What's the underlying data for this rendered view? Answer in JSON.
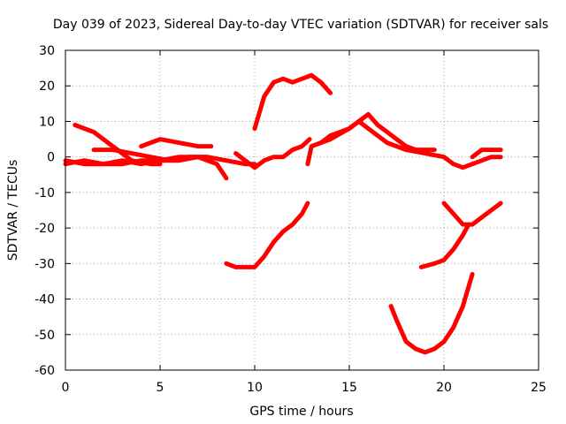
{
  "chart_data": {
    "type": "line",
    "title": "Day 039 of 2023, Sidereal Day-to-day VTEC variation (SDTVAR) for receiver sals",
    "xlabel": "GPS time / hours",
    "ylabel": "SDTVAR / TECUs",
    "xlim": [
      0,
      25
    ],
    "ylim": [
      -60,
      30
    ],
    "xticks": [
      "0",
      "5",
      "10",
      "15",
      "20",
      "25"
    ],
    "yticks": [
      "30",
      "20",
      "10",
      "0",
      "-10",
      "-20",
      "-30",
      "-40",
      "-50",
      "-60"
    ],
    "grid": true,
    "legend": "none",
    "line_color": "#ff0000",
    "series": [
      {
        "x": [
          0.0,
          1.0,
          2.0,
          3.0,
          4.0,
          5.0,
          6.0,
          7.0,
          7.5,
          8.5,
          9.5,
          10.0
        ],
        "y": [
          -2,
          -1,
          -2,
          -1,
          -2,
          -1,
          -1,
          0,
          0,
          -1,
          -2,
          -2
        ]
      },
      {
        "x": [
          0.0,
          1.0,
          2.0,
          3.0,
          4.0,
          5.0,
          6.0,
          7.0,
          8.0,
          8.5
        ],
        "y": [
          -1,
          -2,
          -2,
          -2,
          -1,
          -1,
          0,
          0,
          -2,
          -6
        ]
      },
      {
        "x": [
          0.5,
          1.5,
          2.5,
          3.5,
          4.5,
          5.0
        ],
        "y": [
          9,
          7,
          3,
          -1,
          -2,
          -2
        ]
      },
      {
        "x": [
          1.5,
          2.5,
          3.5,
          4.5,
          5.5,
          6.5,
          7.5
        ],
        "y": [
          2,
          2,
          1,
          0,
          -1,
          0,
          0
        ]
      },
      {
        "x": [
          4.0,
          5.0,
          6.0,
          7.0,
          7.7
        ],
        "y": [
          3,
          5,
          4,
          3,
          3
        ]
      },
      {
        "x": [
          9.0,
          9.5,
          10.0,
          10.5,
          11.0,
          11.5,
          12.0,
          12.5,
          12.9
        ],
        "y": [
          1,
          -1,
          -3,
          -1,
          0,
          0,
          2,
          3,
          5
        ]
      },
      {
        "x": [
          10.0,
          10.5,
          11.0,
          11.5,
          12.0,
          12.5,
          13.0,
          13.5,
          14.0
        ],
        "y": [
          8,
          17,
          21,
          22,
          21,
          22,
          23,
          21,
          18
        ]
      },
      {
        "x": [
          8.5,
          9.0,
          9.5,
          10.0,
          10.5,
          11.0,
          11.5,
          12.0,
          12.5,
          12.8
        ],
        "y": [
          -30,
          -31,
          -31,
          -31,
          -28,
          -24,
          -21,
          -19,
          -16,
          -13
        ]
      },
      {
        "x": [
          12.8,
          13.0,
          14.0,
          15.0,
          15.5,
          16.0,
          16.5,
          17.0,
          17.5,
          18.0,
          18.5,
          19.0,
          19.5
        ],
        "y": [
          -2,
          3,
          5,
          8,
          10,
          12,
          9,
          7,
          5,
          3,
          2,
          2,
          2
        ]
      },
      {
        "x": [
          13.5,
          14.0,
          15.0,
          15.5,
          16.0,
          17.0,
          18.0,
          19.0,
          20.0,
          20.5,
          21.0,
          21.5,
          22.0,
          22.5,
          23.0
        ],
        "y": [
          4,
          6,
          8,
          10,
          8,
          4,
          2,
          1,
          0,
          -2,
          -3,
          -2,
          -1,
          0,
          0
        ]
      },
      {
        "x": [
          21.5,
          22.0,
          22.5,
          23.0
        ],
        "y": [
          0,
          2,
          2,
          2
        ]
      },
      {
        "x": [
          20.0,
          20.5,
          21.0,
          21.5,
          22.0,
          22.5,
          23.0
        ],
        "y": [
          -13,
          -16,
          -19,
          -19,
          -17,
          -15,
          -13
        ]
      },
      {
        "x": [
          18.8,
          19.5,
          20.0,
          20.5,
          21.0,
          21.3
        ],
        "y": [
          -31,
          -30,
          -29,
          -26,
          -22,
          -19
        ]
      },
      {
        "x": [
          17.2,
          17.5,
          18.0,
          18.5,
          19.0,
          19.5,
          20.0,
          20.5,
          21.0,
          21.5
        ],
        "y": [
          -42,
          -46,
          -52,
          -54,
          -55,
          -54,
          -52,
          -48,
          -42,
          -33
        ]
      }
    ]
  }
}
